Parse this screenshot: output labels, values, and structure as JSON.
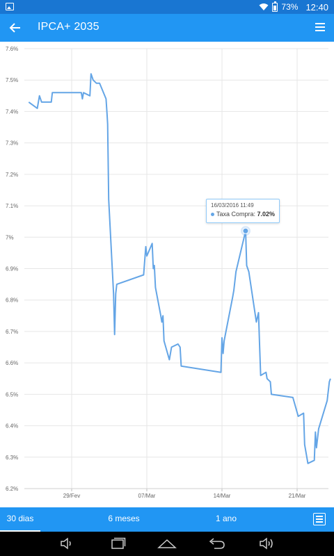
{
  "status_bar": {
    "battery": "73%",
    "time": "12:40"
  },
  "app_bar": {
    "title": "IPCA+ 2035"
  },
  "tabs": [
    {
      "label": "30 dias",
      "active": true
    },
    {
      "label": "6 meses",
      "active": false
    },
    {
      "label": "1 ano",
      "active": false
    }
  ],
  "tooltip": {
    "date": "16/03/2016 11:49",
    "series_label": "Taxa Compra: ",
    "value": "7.02%"
  },
  "chart_data": {
    "type": "line",
    "title": "",
    "xlabel": "",
    "ylabel": "",
    "ylim": [
      6.2,
      7.6
    ],
    "y_ticks": [
      "6.2%",
      "6.3%",
      "6.4%",
      "6.5%",
      "6.6%",
      "6.7%",
      "6.8%",
      "6.9%",
      "7%",
      "7.1%",
      "7.2%",
      "7.3%",
      "7.4%",
      "7.5%",
      "7.6%"
    ],
    "y_tick_values": [
      6.2,
      6.3,
      6.4,
      6.5,
      6.6,
      6.7,
      6.8,
      6.9,
      7.0,
      7.1,
      7.2,
      7.3,
      7.4,
      7.5,
      7.6
    ],
    "x_ticks": [
      {
        "label": "29/Fev",
        "day": 0
      },
      {
        "label": "07/Mar",
        "day": 7
      },
      {
        "label": "14/Mar",
        "day": 14
      },
      {
        "label": "21/Mar",
        "day": 21
      }
    ],
    "grid": true,
    "color": "#64a5e6",
    "highlight": {
      "day": 16.2,
      "value": 7.02
    },
    "series": [
      {
        "name": "Taxa Compra",
        "points": [
          [
            -4.0,
            7.43
          ],
          [
            -3.2,
            7.41
          ],
          [
            -3.0,
            7.45
          ],
          [
            -2.8,
            7.43
          ],
          [
            -1.9,
            7.43
          ],
          [
            -1.8,
            7.46
          ],
          [
            0.3,
            7.46
          ],
          [
            0.9,
            7.46
          ],
          [
            1.0,
            7.44
          ],
          [
            1.1,
            7.46
          ],
          [
            1.7,
            7.45
          ],
          [
            1.8,
            7.52
          ],
          [
            2.0,
            7.5
          ],
          [
            2.3,
            7.49
          ],
          [
            2.6,
            7.49
          ],
          [
            3.2,
            7.44
          ],
          [
            3.3,
            7.39
          ],
          [
            3.35,
            7.36
          ],
          [
            3.45,
            7.12
          ],
          [
            3.9,
            6.82
          ],
          [
            4.0,
            6.69
          ],
          [
            4.1,
            6.82
          ],
          [
            4.2,
            6.85
          ],
          [
            6.7,
            6.88
          ],
          [
            6.9,
            6.97
          ],
          [
            7.0,
            6.94
          ],
          [
            7.5,
            6.98
          ],
          [
            7.6,
            6.9
          ],
          [
            7.7,
            6.91
          ],
          [
            7.8,
            6.84
          ],
          [
            8.3,
            6.75
          ],
          [
            8.4,
            6.73
          ],
          [
            8.5,
            6.75
          ],
          [
            8.6,
            6.67
          ],
          [
            9.1,
            6.61
          ],
          [
            9.3,
            6.65
          ],
          [
            9.9,
            6.66
          ],
          [
            10.1,
            6.65
          ],
          [
            10.2,
            6.59
          ],
          [
            13.9,
            6.57
          ],
          [
            14.0,
            6.68
          ],
          [
            14.1,
            6.63
          ],
          [
            14.2,
            6.67
          ],
          [
            15.0,
            6.81
          ],
          [
            15.1,
            6.83
          ],
          [
            15.3,
            6.89
          ],
          [
            16.2,
            7.02
          ],
          [
            16.3,
            6.91
          ],
          [
            16.5,
            6.89
          ],
          [
            17.2,
            6.73
          ],
          [
            17.4,
            6.76
          ],
          [
            17.5,
            6.66
          ],
          [
            17.6,
            6.56
          ],
          [
            18.1,
            6.57
          ],
          [
            18.2,
            6.55
          ],
          [
            18.5,
            6.54
          ],
          [
            18.6,
            6.5
          ],
          [
            20.6,
            6.49
          ],
          [
            21.1,
            6.43
          ],
          [
            21.6,
            6.44
          ],
          [
            21.7,
            6.34
          ],
          [
            22.0,
            6.28
          ],
          [
            22.6,
            6.29
          ],
          [
            22.7,
            6.38
          ],
          [
            22.8,
            6.33
          ],
          [
            23.0,
            6.39
          ],
          [
            23.8,
            6.48
          ],
          [
            24.0,
            6.54
          ],
          [
            24.1,
            6.55
          ]
        ]
      }
    ]
  }
}
